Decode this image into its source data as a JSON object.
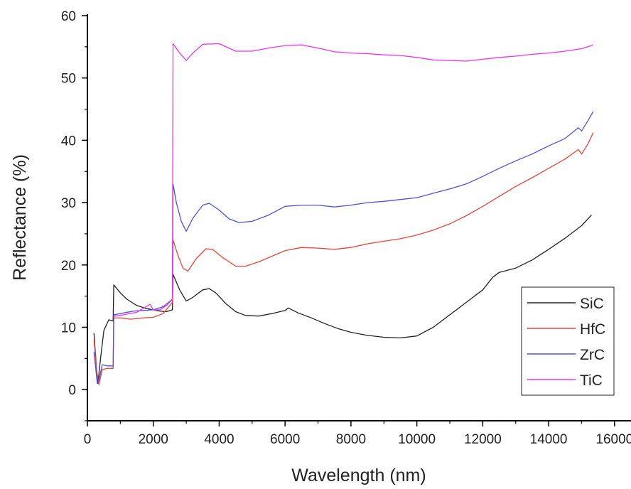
{
  "chart_data": {
    "type": "line",
    "title": "",
    "xlabel": "Wavelength (nm)",
    "ylabel": "Reflectance (%)",
    "xlim": [
      0,
      16500
    ],
    "ylim": [
      -5,
      60
    ],
    "xticks": [
      0,
      2000,
      4000,
      6000,
      8000,
      10000,
      12000,
      14000,
      16000
    ],
    "yticks": [
      0,
      10,
      20,
      30,
      40,
      50,
      60
    ],
    "xtick_labels": [
      "0",
      "2000",
      "4000",
      "6000",
      "8000",
      "10000",
      "12000",
      "14000",
      "16000"
    ],
    "ytick_labels": [
      "0",
      "10",
      "20",
      "30",
      "40",
      "50",
      "60"
    ],
    "grid": false,
    "legend_position": "bottom-right",
    "series": [
      {
        "name": "SiC",
        "color": "#222222",
        "points": [
          [
            200,
            9
          ],
          [
            280,
            3
          ],
          [
            320,
            1
          ],
          [
            400,
            5
          ],
          [
            500,
            9.5
          ],
          [
            650,
            11.2
          ],
          [
            780,
            11
          ],
          [
            800,
            16.8
          ],
          [
            1000,
            15.5
          ],
          [
            1200,
            14.5
          ],
          [
            1500,
            13.5
          ],
          [
            1800,
            13
          ],
          [
            2000,
            12.8
          ],
          [
            2200,
            12.6
          ],
          [
            2400,
            12.5
          ],
          [
            2580,
            12.8
          ],
          [
            2600,
            18.5
          ],
          [
            2800,
            16
          ],
          [
            3000,
            14.2
          ],
          [
            3200,
            14.8
          ],
          [
            3500,
            16
          ],
          [
            3700,
            16.2
          ],
          [
            3900,
            15.5
          ],
          [
            4200,
            13.8
          ],
          [
            4500,
            12.5
          ],
          [
            4800,
            11.9
          ],
          [
            5200,
            11.8
          ],
          [
            5600,
            12.2
          ],
          [
            6000,
            12.7
          ],
          [
            6100,
            13.1
          ],
          [
            6400,
            12.3
          ],
          [
            6800,
            11.5
          ],
          [
            7200,
            10.6
          ],
          [
            7600,
            9.8
          ],
          [
            8000,
            9.2
          ],
          [
            8500,
            8.7
          ],
          [
            9000,
            8.4
          ],
          [
            9500,
            8.3
          ],
          [
            10000,
            8.6
          ],
          [
            10500,
            10
          ],
          [
            11000,
            12
          ],
          [
            11500,
            14
          ],
          [
            12000,
            16
          ],
          [
            12300,
            18
          ],
          [
            12500,
            18.8
          ],
          [
            13000,
            19.5
          ],
          [
            13500,
            20.8
          ],
          [
            14000,
            22.5
          ],
          [
            14500,
            24.3
          ],
          [
            15000,
            26.3
          ],
          [
            15300,
            28
          ]
        ]
      },
      {
        "name": "HfC",
        "color": "#e8453c",
        "points": [
          [
            200,
            8
          ],
          [
            280,
            3
          ],
          [
            350,
            0.8
          ],
          [
            450,
            3.2
          ],
          [
            600,
            3.4
          ],
          [
            780,
            3.4
          ],
          [
            800,
            11.5
          ],
          [
            1000,
            11.5
          ],
          [
            1300,
            11.3
          ],
          [
            1700,
            11.5
          ],
          [
            2000,
            11.6
          ],
          [
            2300,
            12.2
          ],
          [
            2580,
            14
          ],
          [
            2600,
            24
          ],
          [
            2750,
            21.5
          ],
          [
            2900,
            19.5
          ],
          [
            3050,
            19
          ],
          [
            3300,
            21
          ],
          [
            3600,
            22.6
          ],
          [
            3800,
            22.5
          ],
          [
            4100,
            21.2
          ],
          [
            4500,
            19.8
          ],
          [
            4800,
            19.8
          ],
          [
            5200,
            20.5
          ],
          [
            5600,
            21.4
          ],
          [
            6000,
            22.3
          ],
          [
            6500,
            22.8
          ],
          [
            7000,
            22.7
          ],
          [
            7500,
            22.5
          ],
          [
            8000,
            22.8
          ],
          [
            8500,
            23.4
          ],
          [
            9000,
            23.8
          ],
          [
            9500,
            24.2
          ],
          [
            10000,
            24.8
          ],
          [
            10500,
            25.6
          ],
          [
            11000,
            26.6
          ],
          [
            11500,
            27.9
          ],
          [
            12000,
            29.4
          ],
          [
            12500,
            31
          ],
          [
            13000,
            32.6
          ],
          [
            13500,
            34
          ],
          [
            14000,
            35.5
          ],
          [
            14500,
            37
          ],
          [
            14900,
            38.5
          ],
          [
            15000,
            37.8
          ],
          [
            15200,
            39.5
          ],
          [
            15350,
            41.2
          ]
        ]
      },
      {
        "name": "ZrC",
        "color": "#5050e0",
        "points": [
          [
            200,
            6
          ],
          [
            300,
            1
          ],
          [
            350,
            1.5
          ],
          [
            450,
            4
          ],
          [
            600,
            3.8
          ],
          [
            780,
            3.8
          ],
          [
            800,
            12
          ],
          [
            1100,
            12.3
          ],
          [
            1400,
            12.6
          ],
          [
            1700,
            12.7
          ],
          [
            2000,
            12.8
          ],
          [
            2300,
            13.3
          ],
          [
            2580,
            14.5
          ],
          [
            2600,
            33
          ],
          [
            2700,
            30
          ],
          [
            2850,
            27
          ],
          [
            3000,
            25.4
          ],
          [
            3200,
            27.5
          ],
          [
            3500,
            29.6
          ],
          [
            3700,
            29.9
          ],
          [
            4000,
            28.8
          ],
          [
            4300,
            27.4
          ],
          [
            4600,
            26.8
          ],
          [
            5000,
            27
          ],
          [
            5500,
            28
          ],
          [
            6000,
            29.4
          ],
          [
            6500,
            29.6
          ],
          [
            7000,
            29.6
          ],
          [
            7500,
            29.3
          ],
          [
            8000,
            29.6
          ],
          [
            8500,
            30
          ],
          [
            9000,
            30.2
          ],
          [
            9500,
            30.5
          ],
          [
            10000,
            30.8
          ],
          [
            10500,
            31.5
          ],
          [
            11000,
            32.2
          ],
          [
            11500,
            33
          ],
          [
            12000,
            34.2
          ],
          [
            12500,
            35.5
          ],
          [
            13000,
            36.7
          ],
          [
            13500,
            37.8
          ],
          [
            14000,
            39.1
          ],
          [
            14500,
            40.3
          ],
          [
            14900,
            42
          ],
          [
            15000,
            41.5
          ],
          [
            15200,
            43.2
          ],
          [
            15350,
            44.6
          ]
        ]
      },
      {
        "name": "TiC",
        "color": "#ee33ee",
        "points": [
          [
            800,
            11.8
          ],
          [
            1100,
            12
          ],
          [
            1500,
            12.4
          ],
          [
            1900,
            13.7
          ],
          [
            2000,
            12.8
          ],
          [
            2200,
            12.8
          ],
          [
            2400,
            13.5
          ],
          [
            2580,
            14.5
          ],
          [
            2600,
            55.5
          ],
          [
            2800,
            54
          ],
          [
            3000,
            52.8
          ],
          [
            3200,
            54
          ],
          [
            3500,
            55.4
          ],
          [
            4000,
            55.5
          ],
          [
            4500,
            54.3
          ],
          [
            5000,
            54.3
          ],
          [
            5500,
            54.8
          ],
          [
            6000,
            55.2
          ],
          [
            6500,
            55.3
          ],
          [
            7000,
            54.8
          ],
          [
            7500,
            54.2
          ],
          [
            8000,
            54
          ],
          [
            8500,
            53.9
          ],
          [
            9000,
            53.7
          ],
          [
            9500,
            53.6
          ],
          [
            10000,
            53.3
          ],
          [
            10500,
            52.9
          ],
          [
            11000,
            52.8
          ],
          [
            11500,
            52.7
          ],
          [
            12000,
            53
          ],
          [
            12500,
            53.3
          ],
          [
            13000,
            53.5
          ],
          [
            13500,
            53.8
          ],
          [
            14000,
            54
          ],
          [
            14500,
            54.3
          ],
          [
            15000,
            54.7
          ],
          [
            15350,
            55.3
          ]
        ]
      }
    ]
  }
}
